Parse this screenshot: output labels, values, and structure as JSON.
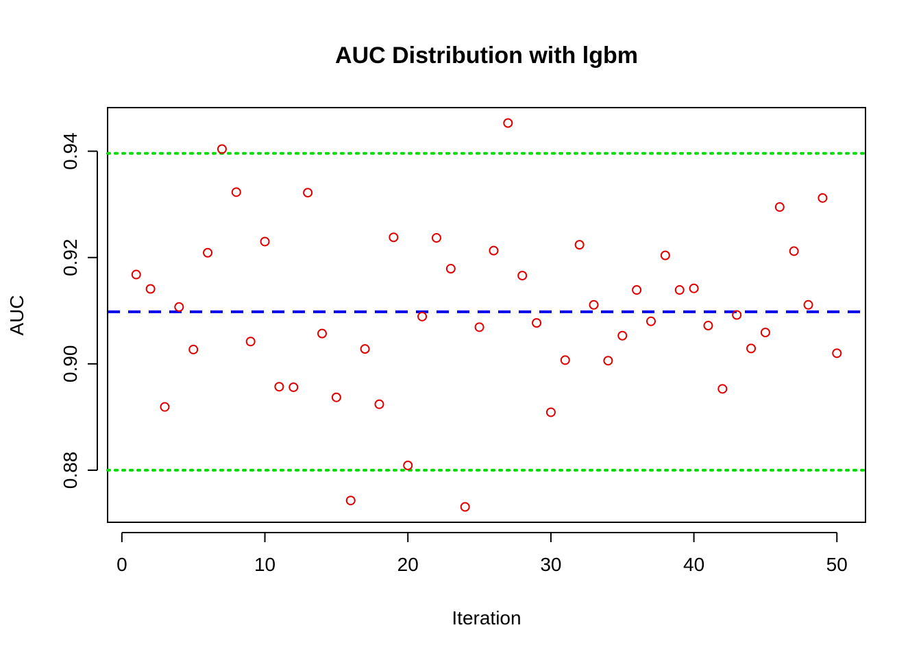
{
  "chart_data": {
    "type": "scatter",
    "title": "AUC Distribution with lgbm",
    "xlabel": "Iteration",
    "ylabel": "AUC",
    "xlim": [
      -1,
      52
    ],
    "ylim": [
      0.8702,
      0.9482
    ],
    "x_ticks": [
      0,
      10,
      20,
      30,
      40,
      50
    ],
    "y_ticks": [
      0.88,
      0.9,
      0.92,
      0.94
    ],
    "x_tick_labels": [
      "0",
      "10",
      "20",
      "30",
      "40",
      "50"
    ],
    "y_tick_labels": [
      "0.88",
      "0.90",
      "0.92",
      "0.94"
    ],
    "series": [
      {
        "name": "AUC",
        "color": "#e00000",
        "marker": "open-circle",
        "x": [
          1,
          2,
          3,
          4,
          5,
          6,
          7,
          8,
          9,
          10,
          11,
          12,
          13,
          14,
          15,
          16,
          17,
          18,
          19,
          20,
          21,
          22,
          23,
          24,
          25,
          26,
          27,
          28,
          29,
          30,
          31,
          32,
          33,
          34,
          35,
          36,
          37,
          38,
          39,
          40,
          41,
          42,
          43,
          44,
          45,
          46,
          47,
          48,
          49,
          50
        ],
        "y": [
          0.9168,
          0.9141,
          0.8919,
          0.9107,
          0.9027,
          0.9209,
          0.9404,
          0.9323,
          0.9042,
          0.923,
          0.8957,
          0.8956,
          0.9322,
          0.9057,
          0.8937,
          0.8743,
          0.9028,
          0.8924,
          0.9238,
          0.8809,
          0.9089,
          0.9237,
          0.9179,
          0.8731,
          0.9069,
          0.9213,
          0.9453,
          0.9166,
          0.9077,
          0.8909,
          0.9007,
          0.9224,
          0.9111,
          0.9006,
          0.9053,
          0.9139,
          0.908,
          0.9204,
          0.9139,
          0.9142,
          0.9072,
          0.8953,
          0.9092,
          0.9029,
          0.9059,
          0.9295,
          0.9212,
          0.9111,
          0.9312,
          0.902
        ]
      }
    ],
    "reference_lines": [
      {
        "name": "mean",
        "y": 0.9098,
        "color": "#0000ee",
        "style": "dashed"
      },
      {
        "name": "upper-bound",
        "y": 0.9396,
        "color": "#00dd00",
        "style": "dotted"
      },
      {
        "name": "lower-bound",
        "y": 0.88,
        "color": "#00dd00",
        "style": "dotted"
      }
    ],
    "grid": false
  }
}
